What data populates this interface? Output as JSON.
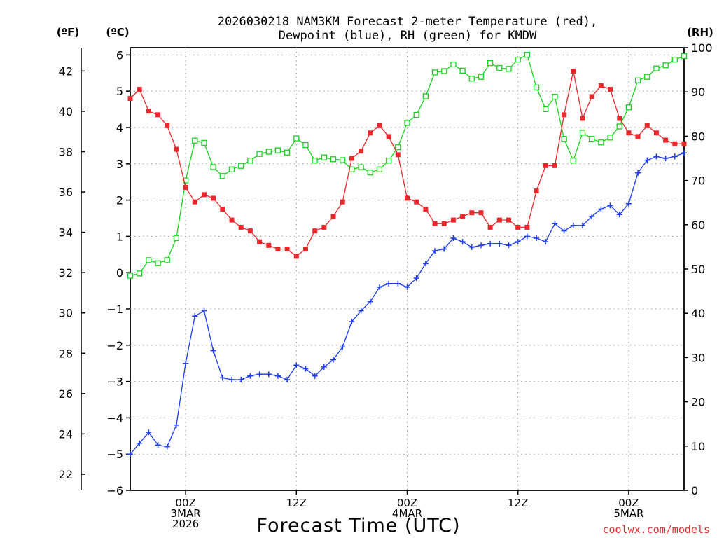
{
  "chart_data": {
    "type": "line",
    "title": [
      "2026030218 NAM3KM Forecast 2-meter Temperature (red),",
      "Dewpoint (blue), RH (green) for KMDW"
    ],
    "xlabel": "Forecast Time (UTC)",
    "credit": "coolwx.com/models",
    "units": {
      "fahrenheit": "(ºF)",
      "celsius": "(ºC)",
      "rh": "(RH)"
    },
    "grid": true,
    "colors": {
      "temperature": "#e8282d",
      "dewpoint": "#1e3cf0",
      "rh": "#17d21e",
      "grid": "#999999"
    },
    "x_hours": {
      "min": -6,
      "max": 54
    },
    "x_ticks": [
      {
        "hour": 0,
        "lines": [
          "00Z",
          "3MAR",
          "2026"
        ]
      },
      {
        "hour": 12,
        "lines": [
          "12Z"
        ]
      },
      {
        "hour": 24,
        "lines": [
          "00Z",
          "4MAR"
        ]
      },
      {
        "hour": 36,
        "lines": [
          "12Z"
        ]
      },
      {
        "hour": 48,
        "lines": [
          "00Z",
          "5MAR"
        ]
      }
    ],
    "y_celsius": {
      "min": -6,
      "max": 6.2,
      "ticks": [
        "6",
        "5",
        "4",
        "3",
        "2",
        "1",
        "0",
        "−1",
        "−2",
        "−3",
        "−4",
        "−5",
        "−6"
      ]
    },
    "y_fahrenheit": {
      "ticks": [
        "42",
        "40",
        "38",
        "36",
        "34",
        "32",
        "30",
        "28",
        "26",
        "24",
        "22"
      ]
    },
    "y_rh": {
      "min": 0,
      "max": 100,
      "ticks": [
        "100",
        "90",
        "80",
        "70",
        "60",
        "50",
        "40",
        "30",
        "20",
        "10",
        "0"
      ]
    },
    "series": [
      {
        "name": "Temperature",
        "unit": "C",
        "x": [
          -6,
          -5,
          -4,
          -3,
          -2,
          -1,
          0,
          1,
          2,
          3,
          4,
          5,
          6,
          7,
          8,
          9,
          10,
          11,
          12,
          13,
          14,
          15,
          16,
          17,
          18,
          19,
          20,
          21,
          22,
          23,
          24,
          25,
          26,
          27,
          28,
          29,
          30,
          31,
          32,
          33,
          34,
          35,
          36,
          37,
          38,
          39,
          40,
          41,
          42,
          43,
          44,
          45,
          46,
          47,
          48,
          49,
          50,
          51,
          52,
          53,
          54
        ],
        "values": [
          4.8,
          5.05,
          4.45,
          4.35,
          4.05,
          3.4,
          2.35,
          1.95,
          2.15,
          2.05,
          1.75,
          1.45,
          1.25,
          1.15,
          0.85,
          0.75,
          0.65,
          0.65,
          0.45,
          0.65,
          1.15,
          1.25,
          1.55,
          1.95,
          3.15,
          3.35,
          3.85,
          4.05,
          3.75,
          3.25,
          2.05,
          1.95,
          1.75,
          1.35,
          1.35,
          1.45,
          1.55,
          1.65,
          1.65,
          1.25,
          1.45,
          1.45,
          1.25,
          1.25,
          2.25,
          2.95,
          2.95,
          4.35,
          5.55,
          4.25,
          4.85,
          5.15,
          5.05,
          4.25,
          3.85,
          3.75,
          4.05,
          3.85,
          3.65,
          3.55,
          3.55
        ]
      },
      {
        "name": "Dewpoint",
        "unit": "C",
        "x": [
          -6,
          -5,
          -4,
          -3,
          -2,
          -1,
          0,
          1,
          2,
          3,
          4,
          5,
          6,
          7,
          8,
          9,
          10,
          11,
          12,
          13,
          14,
          15,
          16,
          17,
          18,
          19,
          20,
          21,
          22,
          23,
          24,
          25,
          26,
          27,
          28,
          29,
          30,
          31,
          32,
          33,
          34,
          35,
          36,
          37,
          38,
          39,
          40,
          41,
          42,
          43,
          44,
          45,
          46,
          47,
          48,
          49,
          50,
          51,
          52,
          53,
          54
        ],
        "values": [
          -5.0,
          -4.7,
          -4.4,
          -4.75,
          -4.8,
          -4.2,
          -2.5,
          -1.2,
          -1.05,
          -2.15,
          -2.9,
          -2.95,
          -2.95,
          -2.85,
          -2.8,
          -2.8,
          -2.85,
          -2.95,
          -2.55,
          -2.65,
          -2.85,
          -2.6,
          -2.4,
          -2.05,
          -1.35,
          -1.05,
          -0.8,
          -0.4,
          -0.3,
          -0.3,
          -0.4,
          -0.15,
          0.25,
          0.6,
          0.65,
          0.95,
          0.85,
          0.7,
          0.75,
          0.8,
          0.8,
          0.75,
          0.85,
          1.0,
          0.95,
          0.85,
          1.35,
          1.15,
          1.3,
          1.3,
          1.55,
          1.75,
          1.85,
          1.6,
          1.9,
          2.75,
          3.1,
          3.2,
          3.15,
          3.2,
          3.3
        ]
      },
      {
        "name": "RH",
        "unit": "%",
        "x": [
          -6,
          -5,
          -4,
          -3,
          -2,
          -1,
          0,
          1,
          2,
          3,
          4,
          5,
          6,
          7,
          8,
          9,
          10,
          11,
          12,
          13,
          14,
          15,
          16,
          17,
          18,
          19,
          20,
          21,
          22,
          23,
          24,
          25,
          26,
          27,
          28,
          29,
          30,
          31,
          32,
          33,
          34,
          35,
          36,
          37,
          38,
          39,
          40,
          41,
          42,
          43,
          44,
          45,
          46,
          47,
          48,
          49,
          50,
          51,
          52,
          53,
          54
        ],
        "values": [
          48.5,
          49,
          52,
          51.3,
          52,
          57,
          70,
          79,
          78.5,
          73,
          71,
          72.5,
          73.3,
          74.5,
          76,
          76.5,
          76.8,
          76.3,
          79.5,
          78,
          74.5,
          75.2,
          74.8,
          74.6,
          72.5,
          73,
          71.8,
          72.5,
          74.5,
          77.5,
          83,
          84.8,
          89,
          94.4,
          94.7,
          96.2,
          94.8,
          93,
          93.4,
          96.5,
          95.4,
          95.2,
          97.3,
          98.4,
          91,
          86.1,
          88.9,
          79.4,
          74.5,
          80.8,
          79.4,
          78.6,
          79.7,
          82.2,
          86.5,
          92.6,
          93.4,
          95.3,
          96,
          97.3,
          98.1
        ]
      }
    ]
  }
}
